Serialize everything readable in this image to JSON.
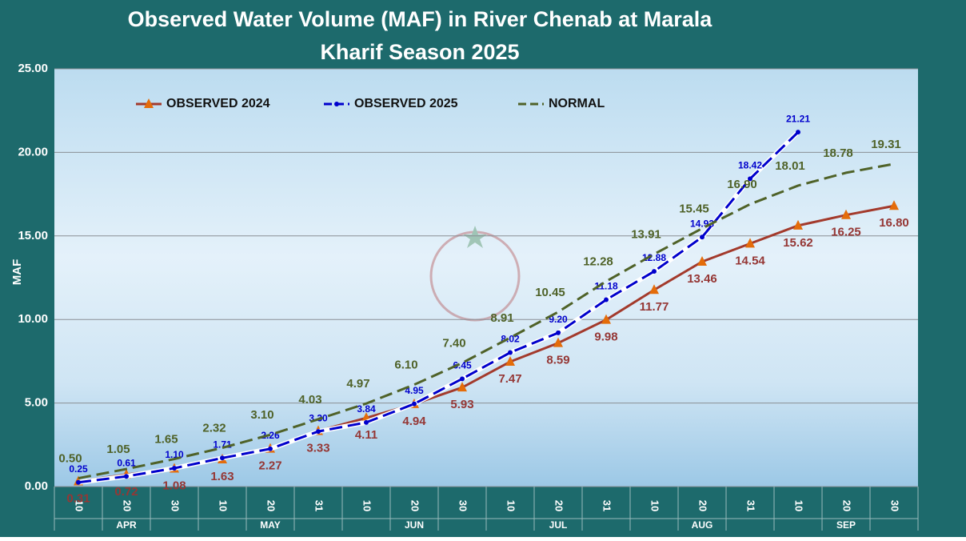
{
  "chart_data": {
    "type": "line",
    "title": "Observed  Water Volume (MAF) in River Chenab at Marala",
    "subtitle": "Kharif Season 2025",
    "y_label": "MAF",
    "categories": [
      "10",
      "20",
      "30",
      "10",
      "20",
      "31",
      "10",
      "20",
      "30",
      "10",
      "20",
      "31",
      "10",
      "20",
      "31",
      "10",
      "20",
      "30"
    ],
    "x_groups": [
      {
        "label": "APR",
        "start": 0,
        "end": 2
      },
      {
        "label": "MAY",
        "start": 3,
        "end": 5
      },
      {
        "label": "JUN",
        "start": 6,
        "end": 8
      },
      {
        "label": "JUL",
        "start": 9,
        "end": 11
      },
      {
        "label": "AUG",
        "start": 12,
        "end": 14
      },
      {
        "label": "SEP",
        "start": 15,
        "end": 17
      }
    ],
    "ylim": [
      0,
      25
    ],
    "yticks": [
      {
        "value": 0,
        "label": "0.00"
      },
      {
        "value": 5,
        "label": "5.00"
      },
      {
        "value": 10,
        "label": "10.00"
      },
      {
        "value": 15,
        "label": "15.00"
      },
      {
        "value": 20,
        "label": "20.00"
      },
      {
        "value": 25,
        "label": "25.00"
      }
    ],
    "grid": true,
    "legend": "top",
    "series": [
      {
        "name": "OBSERVED 2024",
        "color": "#a33a2c",
        "marker_color": "#e46c0a",
        "marker": "triangle",
        "dash": false,
        "label_color": "#953735",
        "label_pos": "below",
        "values": [
          0.31,
          0.72,
          1.08,
          1.63,
          2.27,
          3.33,
          4.11,
          4.94,
          5.93,
          7.47,
          8.59,
          9.98,
          11.77,
          13.46,
          14.54,
          15.62,
          16.25,
          16.8
        ],
        "value_labels": [
          "0.31",
          "0.72",
          "1.08",
          "1.63",
          "2.27",
          "3.33",
          "4.11",
          "4.94",
          "5.93",
          "7.47",
          "8.59",
          "9.98",
          "11.77",
          "13.46",
          "14.54",
          "15.62",
          "16.25",
          "16.80"
        ]
      },
      {
        "name": "OBSERVED 2025",
        "color": "#0000cc",
        "marker_color": "#0000cc",
        "marker": "circle",
        "dash": true,
        "label_color": "#0000cc",
        "label_pos": "above",
        "values": [
          0.25,
          0.61,
          1.1,
          1.71,
          2.26,
          3.3,
          3.84,
          4.95,
          6.45,
          8.02,
          9.2,
          11.18,
          12.88,
          14.93,
          18.42,
          21.21,
          null,
          null
        ],
        "value_labels": [
          "0.25",
          "0.61",
          "1.10",
          "1.71",
          "2.26",
          "3.30",
          "3.84",
          "4.95",
          "6.45",
          "8.02",
          "9.20",
          "11.18",
          "12.88",
          "14.93",
          "18.42",
          "21.21",
          null,
          null
        ]
      },
      {
        "name": "NORMAL",
        "color": "#4f6228",
        "marker_color": "#4f6228",
        "marker": "none",
        "dash": true,
        "label_color": "#4f6228",
        "label_pos": "above-far",
        "values": [
          0.5,
          1.05,
          1.65,
          2.32,
          3.1,
          4.03,
          4.97,
          6.1,
          7.4,
          8.91,
          10.45,
          12.28,
          13.91,
          15.45,
          16.9,
          18.01,
          18.78,
          19.31
        ],
        "value_labels": [
          "0.50",
          "1.05",
          "1.65",
          "2.32",
          "3.10",
          "4.03",
          "4.97",
          "6.10",
          "7.40",
          "8.91",
          "10.45",
          "12.28",
          "13.91",
          "15.45",
          "16.90",
          "18.01",
          "18.78",
          "19.31"
        ]
      }
    ]
  }
}
